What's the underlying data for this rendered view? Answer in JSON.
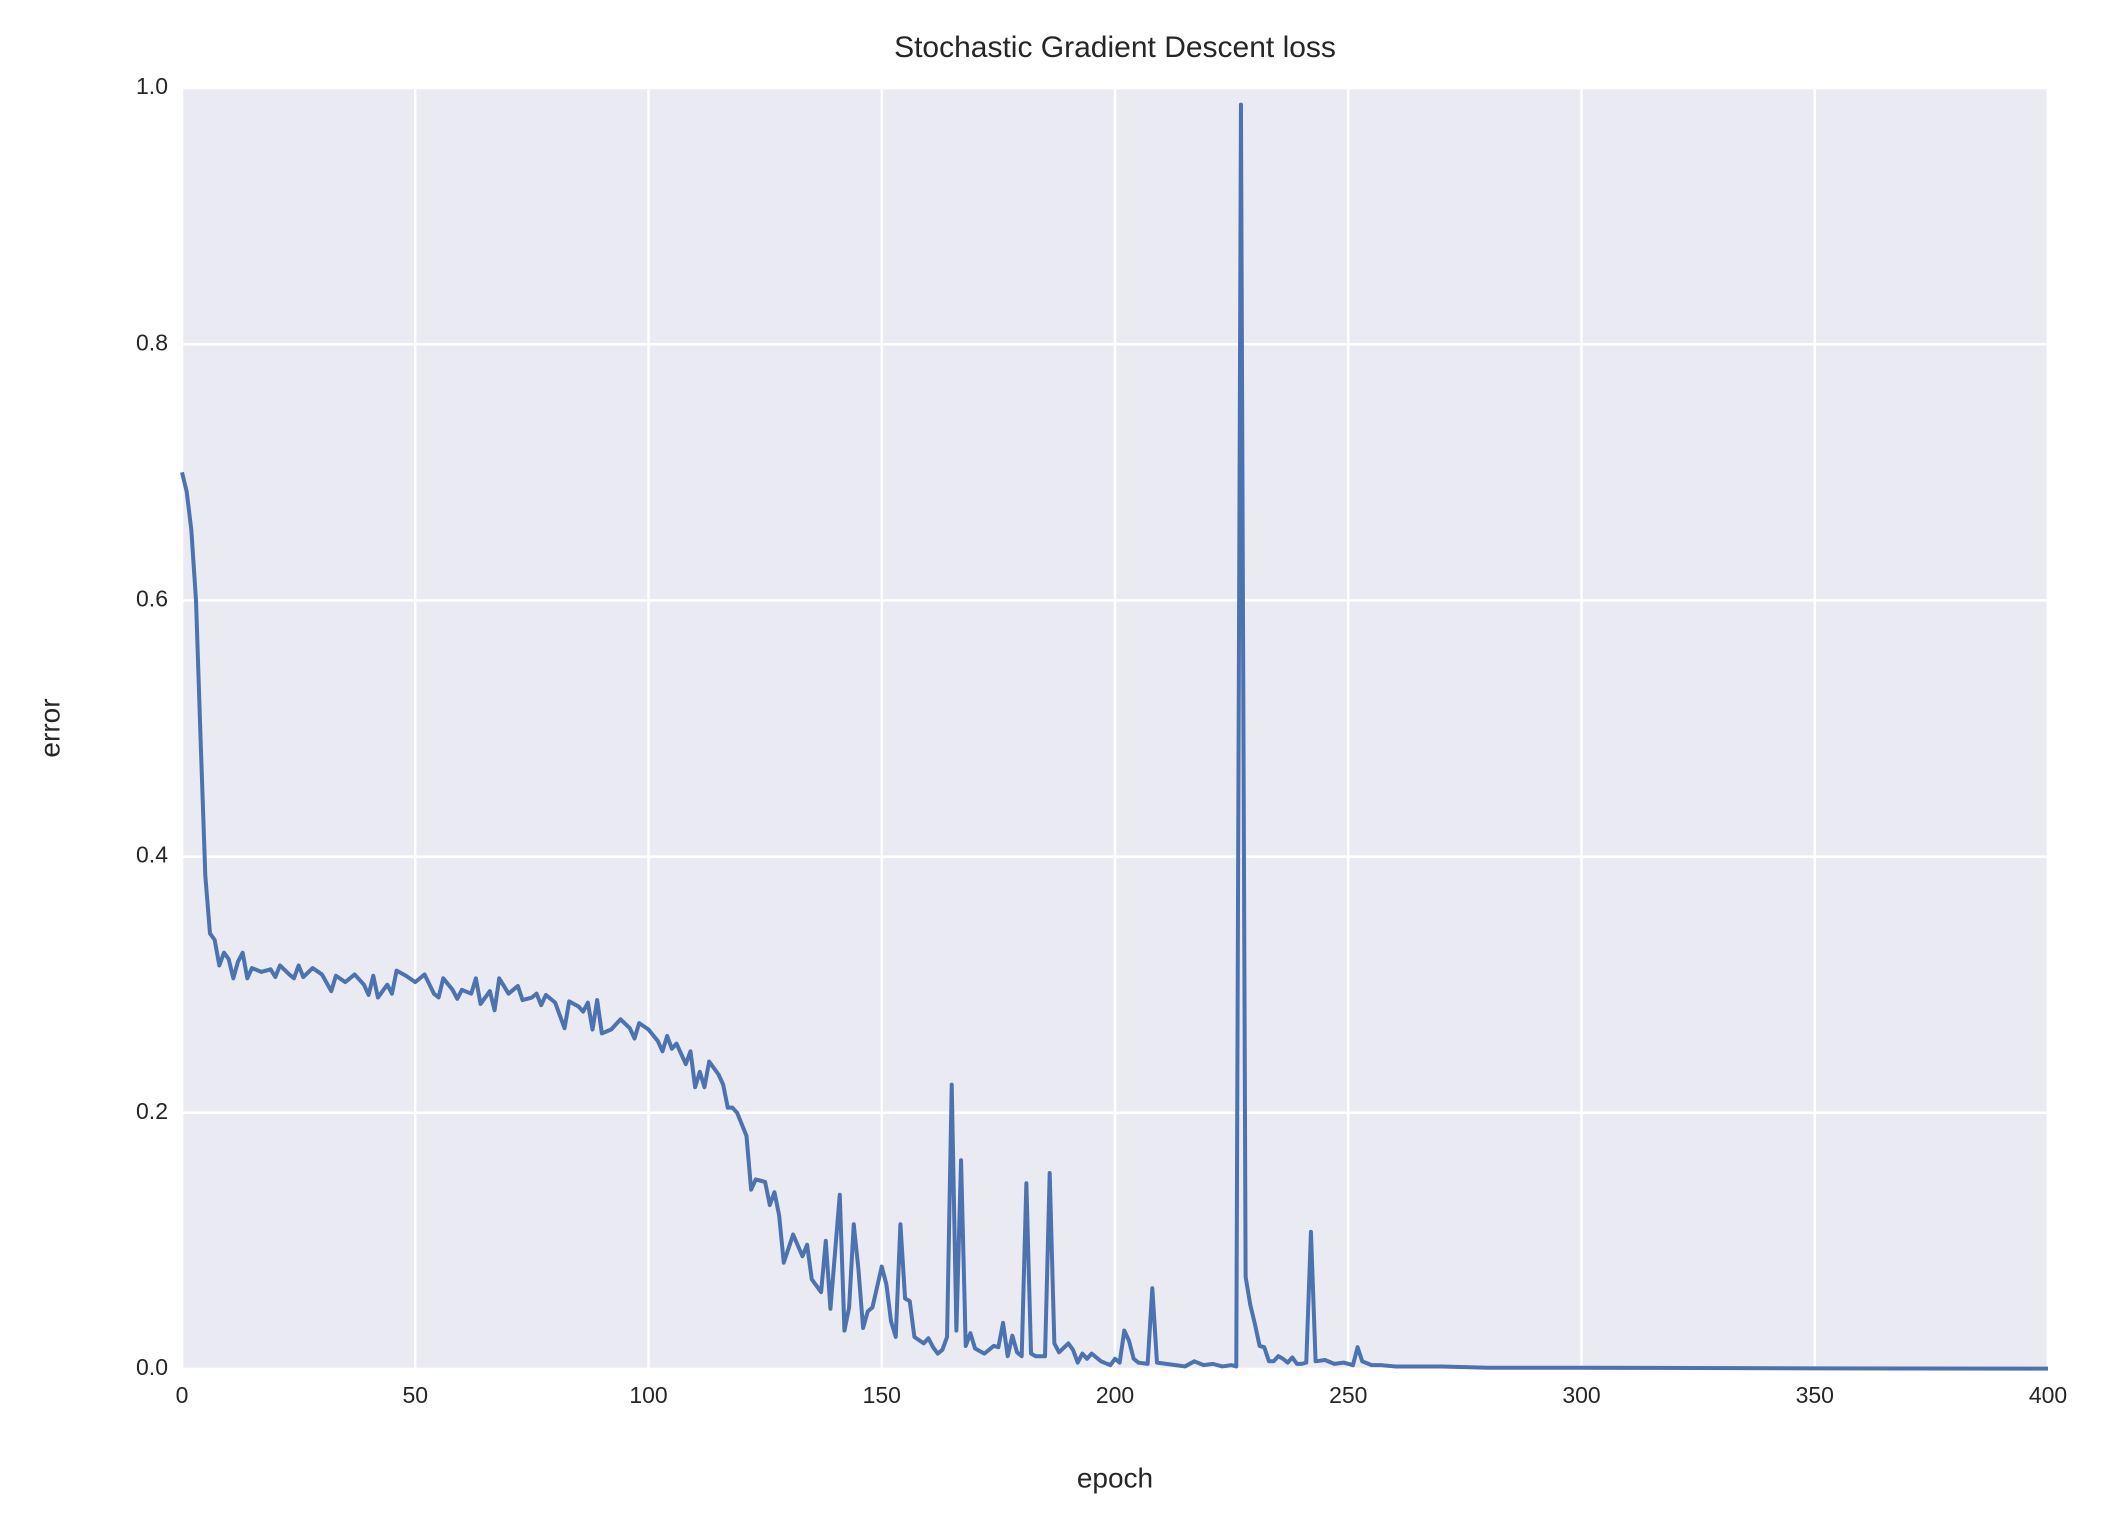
{
  "chart_data": {
    "type": "line",
    "title": "Stochastic Gradient Descent loss",
    "x_label": "epoch",
    "y_label": "error",
    "x": [
      0,
      1,
      2,
      3,
      4,
      5,
      6,
      7,
      8,
      9,
      10,
      11,
      12,
      13,
      14,
      15,
      17,
      19,
      20,
      21,
      23,
      24,
      25,
      26,
      28,
      30,
      32,
      33,
      35,
      37,
      39,
      40,
      41,
      42,
      44,
      45,
      46,
      48,
      50,
      52,
      54,
      55,
      56,
      58,
      59,
      60,
      62,
      63,
      64,
      66,
      67,
      68,
      70,
      72,
      73,
      75,
      76,
      77,
      78,
      80,
      82,
      83,
      85,
      86,
      87,
      88,
      89,
      90,
      92,
      94,
      96,
      97,
      98,
      100,
      102,
      103,
      104,
      105,
      106,
      108,
      109,
      110,
      111,
      112,
      113,
      115,
      116,
      117,
      118,
      119,
      121,
      122,
      123,
      125,
      126,
      127,
      128,
      129,
      131,
      133,
      134,
      135,
      137,
      138,
      139,
      141,
      142,
      143,
      144,
      145,
      146,
      147,
      148,
      150,
      151,
      152,
      153,
      154,
      155,
      156,
      157,
      159,
      160,
      161,
      162,
      163,
      164,
      165,
      166,
      167,
      168,
      169,
      170,
      172,
      174,
      175,
      176,
      177,
      178,
      179,
      180,
      181,
      182,
      183,
      185,
      186,
      187,
      188,
      190,
      191,
      192,
      193,
      194,
      195,
      197,
      199,
      200,
      201,
      202,
      203,
      204,
      205,
      207,
      208,
      209,
      211,
      213,
      215,
      217,
      219,
      221,
      223,
      225,
      226,
      227,
      228,
      229,
      230,
      231,
      232,
      233,
      234,
      235,
      236,
      237,
      238,
      239,
      240,
      241,
      242,
      243,
      245,
      247,
      249,
      251,
      252,
      253,
      255,
      257,
      260,
      265,
      270,
      280,
      290,
      300,
      350,
      400
    ],
    "values": [
      0.7,
      0.685,
      0.655,
      0.6,
      0.49,
      0.385,
      0.34,
      0.335,
      0.315,
      0.325,
      0.32,
      0.305,
      0.318,
      0.325,
      0.305,
      0.313,
      0.31,
      0.312,
      0.306,
      0.315,
      0.308,
      0.305,
      0.315,
      0.306,
      0.313,
      0.308,
      0.295,
      0.307,
      0.302,
      0.308,
      0.3,
      0.292,
      0.307,
      0.29,
      0.3,
      0.293,
      0.311,
      0.307,
      0.302,
      0.308,
      0.293,
      0.29,
      0.305,
      0.296,
      0.289,
      0.296,
      0.293,
      0.305,
      0.285,
      0.295,
      0.28,
      0.305,
      0.293,
      0.299,
      0.288,
      0.29,
      0.293,
      0.284,
      0.292,
      0.286,
      0.266,
      0.287,
      0.283,
      0.279,
      0.286,
      0.265,
      0.288,
      0.262,
      0.265,
      0.273,
      0.266,
      0.258,
      0.27,
      0.265,
      0.256,
      0.248,
      0.26,
      0.25,
      0.254,
      0.238,
      0.248,
      0.22,
      0.232,
      0.22,
      0.24,
      0.23,
      0.222,
      0.204,
      0.204,
      0.2,
      0.182,
      0.14,
      0.148,
      0.146,
      0.128,
      0.138,
      0.12,
      0.083,
      0.105,
      0.088,
      0.097,
      0.07,
      0.06,
      0.1,
      0.047,
      0.136,
      0.03,
      0.048,
      0.113,
      0.078,
      0.032,
      0.045,
      0.048,
      0.08,
      0.066,
      0.037,
      0.025,
      0.113,
      0.055,
      0.053,
      0.025,
      0.02,
      0.024,
      0.017,
      0.012,
      0.015,
      0.025,
      0.222,
      0.03,
      0.163,
      0.018,
      0.028,
      0.016,
      0.012,
      0.018,
      0.017,
      0.036,
      0.01,
      0.026,
      0.013,
      0.01,
      0.145,
      0.012,
      0.01,
      0.01,
      0.153,
      0.02,
      0.013,
      0.02,
      0.015,
      0.005,
      0.012,
      0.008,
      0.012,
      0.006,
      0.003,
      0.008,
      0.005,
      0.03,
      0.022,
      0.008,
      0.005,
      0.004,
      0.063,
      0.005,
      0.004,
      0.003,
      0.002,
      0.006,
      0.003,
      0.004,
      0.002,
      0.003,
      0.002,
      0.987,
      0.072,
      0.05,
      0.035,
      0.018,
      0.017,
      0.006,
      0.006,
      0.01,
      0.008,
      0.005,
      0.009,
      0.004,
      0.004,
      0.005,
      0.107,
      0.006,
      0.007,
      0.004,
      0.005,
      0.003,
      0.017,
      0.006,
      0.003,
      0.003,
      0.002,
      0.002,
      0.002,
      0.001,
      0.001,
      0.001,
      0.0005,
      0.0003
    ],
    "color": "#4c72b0",
    "xlim": [
      0,
      400
    ],
    "xticks": [
      0,
      50,
      100,
      150,
      200,
      250,
      300,
      350,
      400
    ],
    "ylim": [
      0,
      1
    ],
    "yticks": [
      {
        "value": 0,
        "label": "0.0"
      },
      0.2,
      0.4,
      0.6,
      0.8,
      {
        "value": 1,
        "label": "1.0"
      }
    ],
    "grid": true
  }
}
